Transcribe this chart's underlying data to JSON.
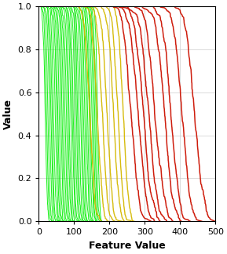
{
  "title": "",
  "xlabel": "Feature Value",
  "ylabel": "Value",
  "xlim": [
    0,
    500
  ],
  "ylim": [
    0,
    1
  ],
  "xticks": [
    0,
    100,
    200,
    300,
    400,
    500
  ],
  "yticks": [
    0,
    0.2,
    0.4,
    0.6,
    0.8,
    1.0
  ],
  "green_curves": {
    "color": "#00ee00",
    "n_curves": 38,
    "x_starts": [
      18,
      22,
      26,
      30,
      34,
      38,
      42,
      46,
      50,
      54,
      58,
      62,
      66,
      70,
      74,
      78,
      82,
      86,
      90,
      94,
      98,
      102,
      106,
      110,
      114,
      118,
      122,
      126,
      130,
      134,
      138,
      142,
      146,
      150,
      154,
      158,
      162,
      166
    ],
    "spread": 5
  },
  "yellow_curves": {
    "color": "#d4b800",
    "n_curves": 7,
    "x_starts": [
      145,
      165,
      180,
      195,
      210,
      225,
      240
    ],
    "spread": 12
  },
  "red_curves": {
    "color": "#cc1100",
    "n_curves": 9,
    "x_starts": [
      260,
      278,
      295,
      312,
      330,
      355,
      375,
      405,
      440
    ],
    "spread": 20
  },
  "grid_color": "#cccccc",
  "bg_color": "#ffffff",
  "linewidth_green": 0.7,
  "linewidth_yellow": 1.0,
  "linewidth_red": 1.1
}
